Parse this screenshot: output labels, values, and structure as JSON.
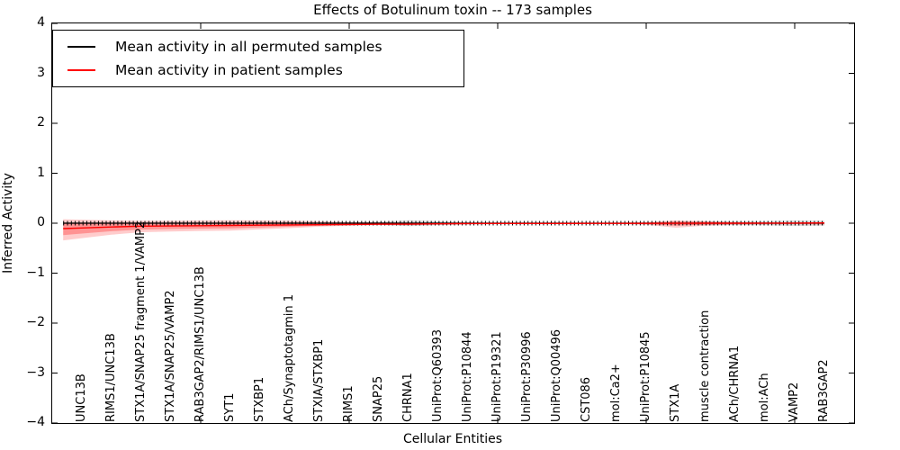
{
  "title": "Effects of Botulinum toxin -- 173 samples",
  "legend": {
    "position": "upper left",
    "items": [
      {
        "label": "Mean activity in all permuted samples",
        "color": "#000000"
      },
      {
        "label": "Mean activity in patient samples",
        "color": "#ff0000"
      }
    ]
  },
  "axes": {
    "xlabel": "Cellular Entities",
    "ylabel": "Inferred Activity",
    "ylim": [
      -4,
      4
    ],
    "xlim": [
      0,
      27
    ],
    "ytick_labels": [
      "4",
      "3",
      "2",
      "1",
      "0",
      "−1",
      "−2",
      "−3",
      "−4"
    ],
    "ytick_values": [
      4,
      3,
      2,
      1,
      0,
      -1,
      -2,
      -3,
      -4
    ],
    "xtick_positions": [
      5,
      10,
      15,
      20,
      25
    ]
  },
  "colors": {
    "patient": "#ff0000",
    "permuted": "#000000",
    "background": "#ffffff"
  },
  "chart_data": {
    "type": "line",
    "title": "Effects of Botulinum toxin -- 173 samples",
    "xlabel": "Cellular Entities",
    "ylabel": "Inferred Activity",
    "ylim": [
      -4,
      4
    ],
    "grid": false,
    "legend_position": "upper left",
    "categories": [
      "UNC13B",
      "RIMS1/UNC13B",
      "STX1A/SNAP25 fragment 1/VAMP2",
      "STX1A/SNAP25/VAMP2",
      "RAB3GAP2/RIMS1/UNC13B",
      "SYT1",
      "STXBP1",
      "ACh/Synaptotagmin 1",
      "STXIA/STXBP1",
      "RIMS1",
      "SNAP25",
      "CHRNA1",
      "UniProt:Q60393",
      "UniProt:P10844",
      "UniProt:P19321",
      "UniProt:P30996",
      "UniProt:Q00496",
      "CST086",
      "mol:Ca2+",
      "UniProt:P10845",
      "STX1A",
      "muscle contraction",
      "ACh/CHRNA1",
      "mol:ACh",
      "VAMP2",
      "RAB3GAP2"
    ],
    "series": [
      {
        "name": "Mean activity in all permuted samples",
        "color": "#000000",
        "values": [
          0,
          0,
          0,
          0,
          0,
          0,
          0,
          0,
          0,
          0,
          0,
          0,
          0,
          0,
          0,
          0,
          0,
          0,
          0,
          0,
          0,
          0,
          0,
          0,
          0,
          0
        ]
      },
      {
        "name": "Mean activity in patient samples",
        "color": "#ff0000",
        "values": [
          -0.095,
          -0.075,
          -0.06,
          -0.055,
          -0.05,
          -0.045,
          -0.04,
          -0.035,
          -0.03,
          -0.025,
          -0.02,
          -0.02,
          -0.012,
          -0.008,
          -0.006,
          -0.005,
          -0.005,
          -0.004,
          -0.004,
          -0.003,
          -0.002,
          0,
          0,
          0.002,
          0.002,
          0.005
        ]
      },
      {
        "name": "Patient samples band low",
        "color": "#ff0000",
        "values": [
          -0.3,
          -0.23,
          -0.18,
          -0.165,
          -0.155,
          -0.15,
          -0.125,
          -0.1,
          -0.07,
          -0.05,
          -0.04,
          -0.04,
          -0.025,
          -0.02,
          -0.015,
          -0.015,
          -0.015,
          -0.015,
          -0.015,
          -0.03,
          -0.09,
          -0.05,
          -0.03,
          -0.025,
          -0.02,
          -0.03
        ]
      },
      {
        "name": "Patient samples band high",
        "color": "#ff0000",
        "values": [
          0.07,
          0.055,
          0.05,
          0.05,
          0.055,
          0.06,
          0.055,
          0.05,
          0.04,
          0.025,
          0.02,
          0.02,
          0.015,
          0.01,
          0.01,
          0.01,
          0.01,
          0.01,
          0.01,
          0.02,
          0.055,
          0.04,
          0.02,
          0.015,
          0.015,
          0.02
        ]
      },
      {
        "name": "Permuted samples band low",
        "color": "#000000",
        "values": [
          -0.02,
          -0.02,
          -0.02,
          -0.02,
          -0.02,
          -0.02,
          -0.02,
          -0.02,
          -0.02,
          -0.02,
          -0.03,
          -0.06,
          -0.04,
          -0.02,
          -0.015,
          -0.015,
          -0.015,
          -0.015,
          -0.015,
          -0.02,
          -0.03,
          -0.04,
          -0.04,
          -0.04,
          -0.055,
          -0.05
        ]
      },
      {
        "name": "Permuted samples band high",
        "color": "#000000",
        "values": [
          0.02,
          0.02,
          0.02,
          0.02,
          0.02,
          0.02,
          0.02,
          0.02,
          0.02,
          0.02,
          0.03,
          0.06,
          0.04,
          0.02,
          0.015,
          0.015,
          0.015,
          0.015,
          0.015,
          0.02,
          0.03,
          0.04,
          0.04,
          0.04,
          0.055,
          0.05
        ]
      }
    ]
  }
}
